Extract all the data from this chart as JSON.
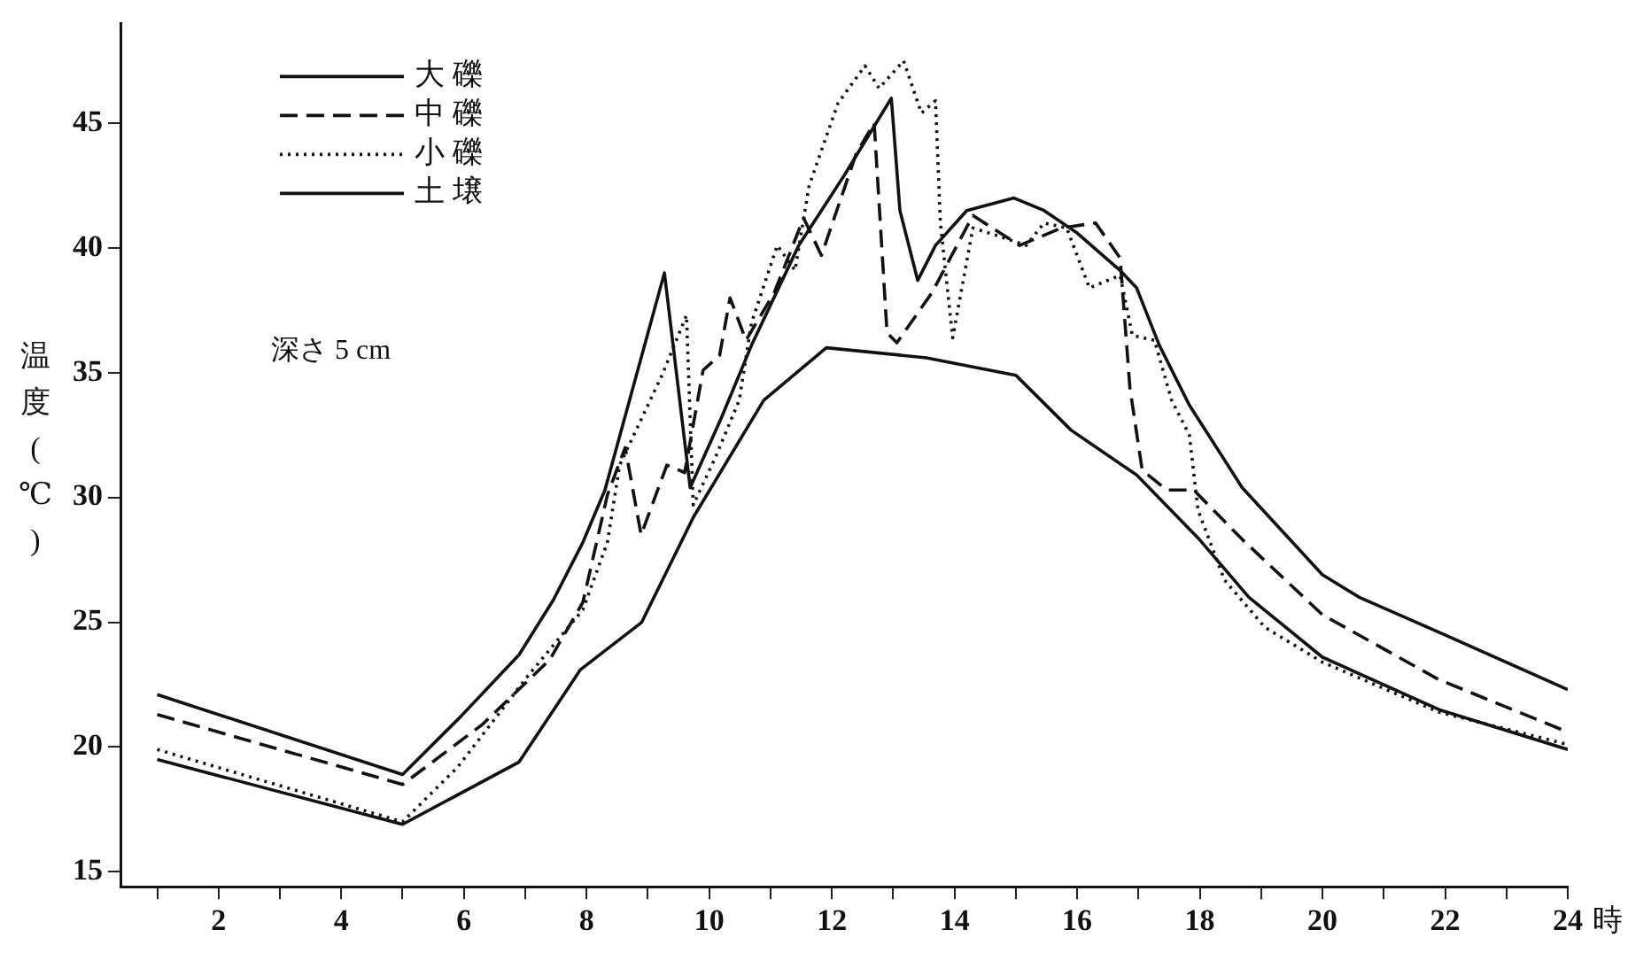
{
  "chart_data": {
    "type": "line",
    "ylabel": "温度(℃)",
    "xlabel": "時",
    "annotations": [
      "深さ 5 cm"
    ],
    "xlim": [
      0.4,
      24
    ],
    "ylim": [
      14.4,
      49
    ],
    "xticks": [
      {
        "value": 1,
        "label": null
      },
      2,
      {
        "value": 3,
        "label": null
      },
      4,
      {
        "value": 5,
        "label": null
      },
      6,
      {
        "value": 7,
        "label": null
      },
      8,
      {
        "value": 9,
        "label": null
      },
      10,
      {
        "value": 11,
        "label": null
      },
      12,
      {
        "value": 13,
        "label": null
      },
      14,
      {
        "value": 15,
        "label": null
      },
      16,
      {
        "value": 17,
        "label": null
      },
      18,
      {
        "value": 19,
        "label": null
      },
      20,
      {
        "value": 21,
        "label": null
      },
      22,
      {
        "value": 23,
        "label": null
      },
      24
    ],
    "yticks": [
      15,
      20,
      25,
      30,
      35,
      40,
      45
    ],
    "grid": false,
    "legend": "top left",
    "marker": "none",
    "series": [
      {
        "name": "大 礫",
        "color": "#111111",
        "line_style": "solid",
        "x": [
          1,
          5,
          5.94,
          6.9,
          7.46,
          7.94,
          8.3,
          9.27,
          9.69,
          10.2,
          10.69,
          11.46,
          12.2,
          12.77,
          12.97,
          13.11,
          13.4,
          13.69,
          14.2,
          14.97,
          15.46,
          16.0,
          16.7,
          16.97,
          17.34,
          17.83,
          18.69,
          20.0,
          20.6,
          21.9,
          24
        ],
        "values": [
          22.1,
          18.9,
          21.2,
          23.7,
          25.9,
          28.2,
          30.3,
          39.0,
          30.4,
          33.2,
          36.1,
          40.1,
          42.9,
          45.2,
          46.0,
          41.5,
          38.7,
          40.1,
          41.5,
          42.0,
          41.5,
          40.6,
          39.1,
          38.4,
          36.1,
          33.7,
          30.4,
          26.9,
          26.0,
          24.6,
          22.3
        ]
      },
      {
        "name": "中 礫",
        "color": "#111111",
        "line_style": "dashed",
        "x": [
          1,
          5,
          6.3,
          7.4,
          7.94,
          8.34,
          8.63,
          8.89,
          9.31,
          9.6,
          9.9,
          10.17,
          10.34,
          10.6,
          11.06,
          11.54,
          11.83,
          12.4,
          12.69,
          12.9,
          13.06,
          13.63,
          14.3,
          15.06,
          15.74,
          16.3,
          16.7,
          16.86,
          17.06,
          17.46,
          17.9,
          18.7,
          20.0,
          21.9,
          24
        ],
        "values": [
          21.3,
          18.5,
          20.9,
          23.5,
          25.8,
          30.1,
          32.0,
          28.5,
          31.3,
          31.0,
          35.1,
          35.7,
          38.0,
          36.3,
          38.2,
          41.2,
          39.7,
          43.8,
          45.0,
          36.6,
          36.2,
          38.2,
          41.3,
          40.1,
          40.8,
          41.0,
          39.6,
          34.4,
          31.1,
          30.3,
          30.3,
          28.3,
          25.3,
          22.7,
          20.6
        ]
      },
      {
        "name": "小 礫",
        "color": "#111111",
        "line_style": "dotted",
        "x": [
          1,
          5,
          5.9,
          7.06,
          7.94,
          8.34,
          8.54,
          9.23,
          9.63,
          9.74,
          10.1,
          10.49,
          10.69,
          11.11,
          11.4,
          11.63,
          12.1,
          12.54,
          12.77,
          13.17,
          13.46,
          13.69,
          13.77,
          13.97,
          14.3,
          14.69,
          15.17,
          15.46,
          15.83,
          16.2,
          16.7,
          16.9,
          17.26,
          17.54,
          17.83,
          17.97,
          18.4,
          19.06,
          20.0,
          21.9,
          24
        ],
        "values": [
          19.9,
          17.0,
          19.2,
          22.9,
          25.5,
          28.2,
          31.3,
          34.9,
          37.3,
          29.7,
          31.6,
          33.9,
          37.0,
          40.1,
          39.1,
          42.5,
          45.8,
          47.3,
          46.4,
          47.5,
          45.4,
          45.9,
          41.0,
          36.4,
          40.8,
          40.5,
          40.1,
          41.0,
          40.8,
          38.4,
          38.9,
          36.5,
          36.3,
          33.9,
          32.5,
          29.5,
          26.7,
          24.8,
          23.4,
          21.4,
          20.1
        ]
      },
      {
        "name": "土 壌",
        "color": "#111111",
        "line_style": "solid",
        "x": [
          1,
          5,
          6.9,
          7.9,
          8.9,
          9.74,
          10.89,
          11.91,
          13.54,
          15.0,
          15.9,
          16.97,
          18.0,
          18.8,
          20.0,
          21.9,
          24
        ],
        "values": [
          19.5,
          16.9,
          19.4,
          23.1,
          25.0,
          29.2,
          33.9,
          36.0,
          35.6,
          34.9,
          32.7,
          30.9,
          28.3,
          26.0,
          23.6,
          21.5,
          19.9
        ]
      }
    ]
  }
}
